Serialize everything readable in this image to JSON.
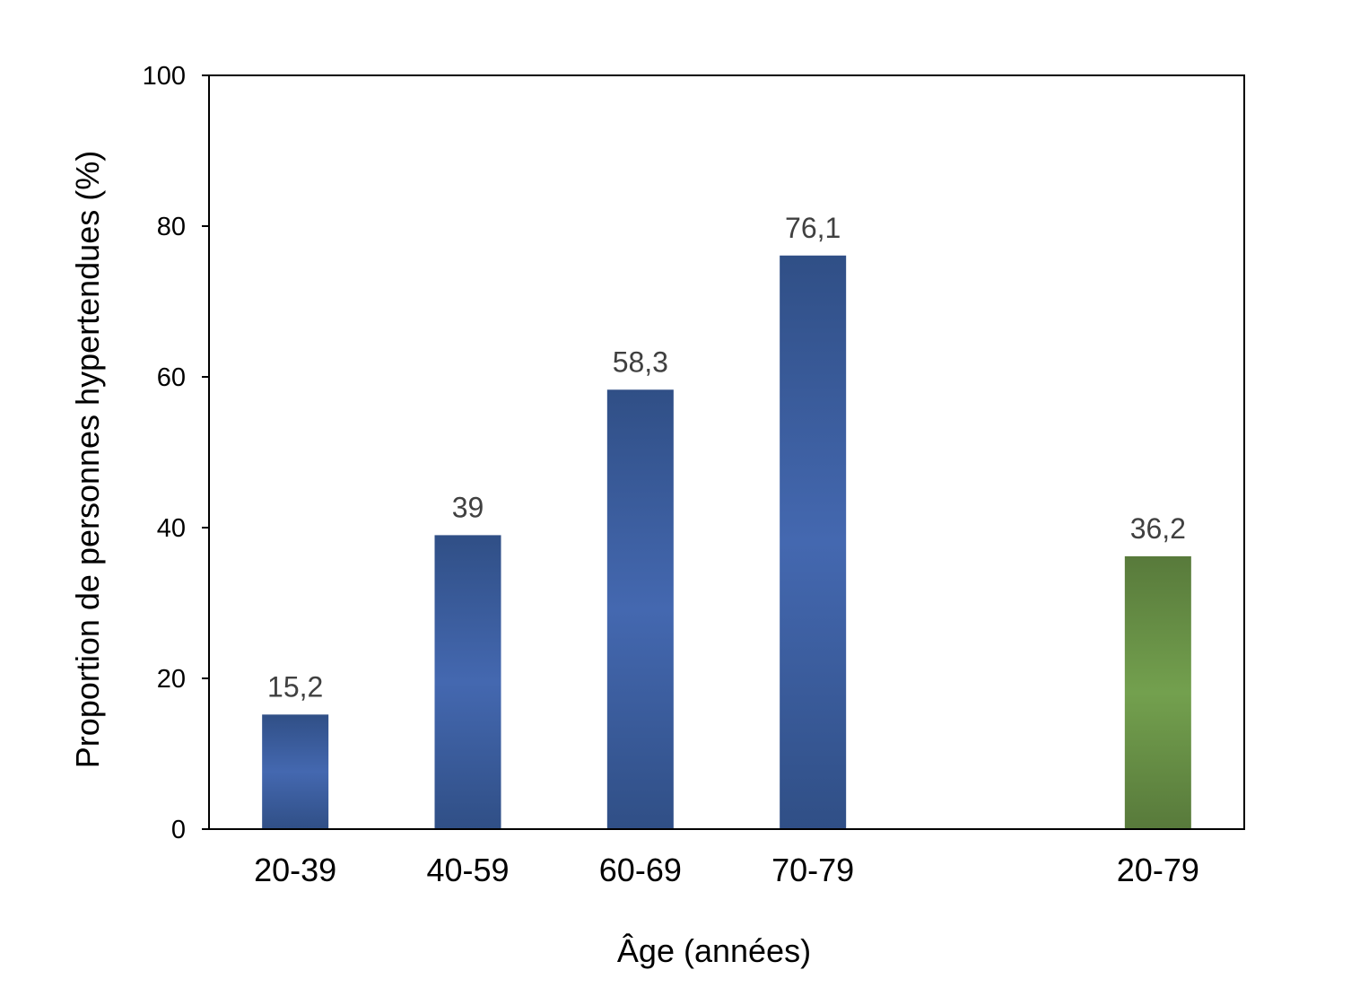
{
  "chart_data": {
    "type": "bar",
    "title": "",
    "xlabel": "Âge (années)",
    "ylabel": "Proportion de personnes hypertendues (%)",
    "ylim": [
      0,
      100
    ],
    "yticks": [
      "0",
      "20",
      "40",
      "60",
      "80",
      "100"
    ],
    "grid": false,
    "categories": [
      "20-39",
      "40-59",
      "60-69",
      "70-79",
      "20-79"
    ],
    "values": [
      15.2,
      39,
      58.3,
      76.1,
      36.2
    ],
    "value_labels": [
      "15,2",
      "39",
      "58,3",
      "76,1",
      "36,2"
    ],
    "colors": [
      "#3f62ad",
      "#3f62ad",
      "#3f62ad",
      "#3f62ad",
      "#6e9a4a"
    ]
  }
}
